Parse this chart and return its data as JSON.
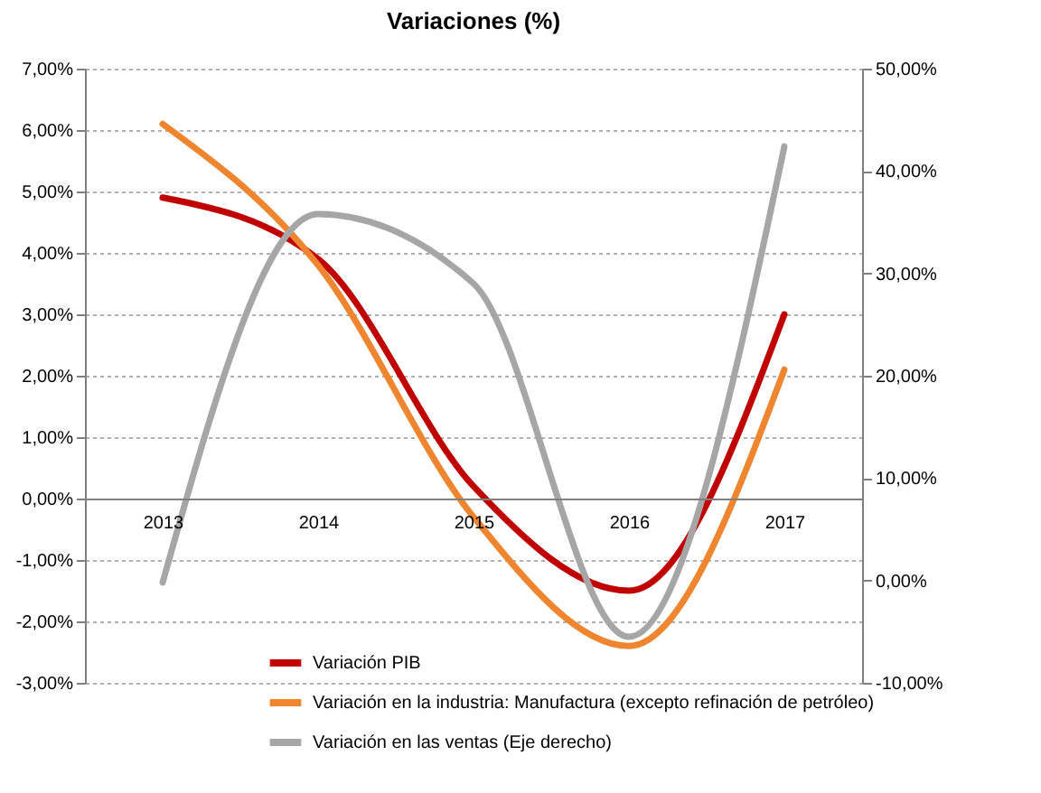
{
  "chart_data": {
    "type": "line",
    "title": "Variaciones (%)",
    "categories": [
      "2013",
      "2014",
      "2015",
      "2016",
      "2017"
    ],
    "series": [
      {
        "name": "Variación PIB",
        "color": "#c00000",
        "values": [
          4.9,
          3.9,
          0.2,
          -1.5,
          3.0
        ]
      },
      {
        "name": "Variación en la industria: Manufactura (excepto refinación de petróleo)",
        "color": "#f08530",
        "values": [
          6.1,
          3.8,
          -0.3,
          -2.4,
          2.1
        ]
      },
      {
        "name": "Variación en las ventas (Eje derecho)",
        "color": "#a6a6a6",
        "axis": "y2",
        "values": [
          -0.2,
          35.8,
          29.0,
          -5.5,
          42.4
        ]
      }
    ],
    "ylim": [
      -3,
      7
    ],
    "yticks": [
      {
        "value": -3,
        "label": "-3,00%"
      },
      {
        "value": -2,
        "label": "-2,00%"
      },
      {
        "value": -1,
        "label": "-1,00%"
      },
      {
        "value": 0,
        "label": "0,00%"
      },
      {
        "value": 1,
        "label": "1,00%"
      },
      {
        "value": 2,
        "label": "2,00%"
      },
      {
        "value": 3,
        "label": "3,00%"
      },
      {
        "value": 4,
        "label": "4,00%"
      },
      {
        "value": 5,
        "label": "5,00%"
      },
      {
        "value": 6,
        "label": "6,00%"
      },
      {
        "value": 7,
        "label": "7,00%"
      }
    ],
    "y2lim": [
      -10,
      50
    ],
    "y2ticks": [
      {
        "value": -10,
        "label": "-10,00%"
      },
      {
        "value": 0,
        "label": "0,00%"
      },
      {
        "value": 10,
        "label": "10,00%"
      },
      {
        "value": 20,
        "label": "20,00%"
      },
      {
        "value": 30,
        "label": "30,00%"
      },
      {
        "value": 40,
        "label": "40,00%"
      },
      {
        "value": 50,
        "label": "50,00%"
      }
    ],
    "grid": "y",
    "legend": "bottom",
    "marker": "none",
    "line_style": "solid"
  }
}
